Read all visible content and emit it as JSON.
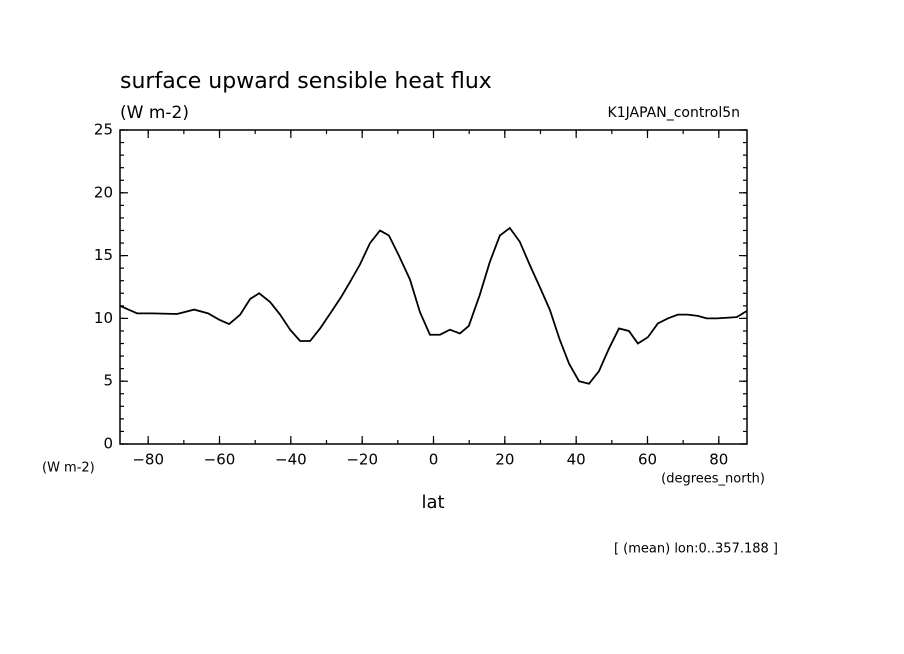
{
  "chart_data": {
    "type": "line",
    "title": "surface upward sensible heat flux",
    "subtitle": "(W m-2)",
    "annotation_right": "K1JAPAN_control5n",
    "y_unit_label": "(W m-2)",
    "x_unit_label": "(degrees_north)",
    "x_label": "lat",
    "footnote": "[ (mean) lon:0..357.188 ]",
    "xlim": [
      -87.9,
      87.9
    ],
    "ylim": [
      0,
      25
    ],
    "xticks": [
      -80,
      -60,
      -40,
      -20,
      0,
      20,
      40,
      60,
      80
    ],
    "yticks": [
      0,
      5,
      10,
      15,
      20,
      25
    ],
    "xminor_ticks": [
      -80,
      -70,
      -60,
      -50,
      -40,
      -30,
      -20,
      -10,
      0,
      10,
      20,
      30,
      40,
      50,
      60,
      70,
      80
    ],
    "yminor_ticks": [
      0,
      1,
      2,
      3,
      4,
      5,
      6,
      7,
      8,
      9,
      10,
      11,
      12,
      13,
      14,
      15,
      16,
      17,
      18,
      19,
      20,
      21,
      22,
      23,
      24,
      25
    ],
    "x": [
      -87.9,
      -83.1,
      -78.9,
      -71.9,
      -67.1,
      -63.2,
      -60.1,
      -57.3,
      -54.2,
      -51.4,
      -48.9,
      -45.8,
      -43.0,
      -40.2,
      -37.4,
      -34.6,
      -31.8,
      -28.7,
      -25.9,
      -23.4,
      -20.6,
      -17.8,
      -15.0,
      -12.5,
      -9.7,
      -6.6,
      -3.8,
      -1.0,
      1.8,
      4.6,
      7.4,
      9.9,
      13.0,
      15.8,
      18.6,
      21.4,
      24.2,
      27.0,
      29.8,
      32.6,
      35.4,
      38.0,
      40.8,
      43.6,
      46.4,
      49.2,
      52.0,
      54.8,
      57.3,
      60.1,
      62.9,
      65.7,
      68.5,
      71.3,
      74.1,
      76.6,
      79.4,
      85.0,
      87.9
    ],
    "series": [
      {
        "color": "#000000",
        "values": [
          11.0,
          10.4,
          10.4,
          10.35,
          10.7,
          10.4,
          9.9,
          9.55,
          10.3,
          11.55,
          12.0,
          11.3,
          10.3,
          9.1,
          8.2,
          8.2,
          9.2,
          10.5,
          11.7,
          12.9,
          14.3,
          16.0,
          17.0,
          16.6,
          15.0,
          13.1,
          10.5,
          8.7,
          8.7,
          9.1,
          8.8,
          9.4,
          11.9,
          14.5,
          16.6,
          17.2,
          16.1,
          14.25,
          12.5,
          10.7,
          8.3,
          6.4,
          5.0,
          4.8,
          5.8,
          7.6,
          9.2,
          9.0,
          8.0,
          8.5,
          9.6,
          10.0,
          10.3,
          10.3,
          10.2,
          10.0,
          10.0,
          10.1,
          10.6
        ]
      }
    ]
  }
}
